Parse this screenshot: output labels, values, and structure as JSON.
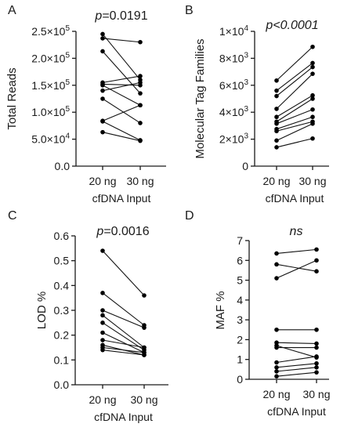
{
  "chart_data": [
    {
      "type": "scatter",
      "panel_label": "A",
      "annotation": "p=0.0191",
      "annotation_prefix": "p",
      "annotation_suffix": "=0.0191",
      "ylabel": "Total Reads",
      "xlabel": "cfDNA Input",
      "categories": [
        "20 ng",
        "30 ng"
      ],
      "ylim": [
        0,
        250000
      ],
      "yticks": [
        0,
        50000,
        100000,
        150000,
        200000,
        250000
      ],
      "ytick_labels": [
        {
          "base": "0.0",
          "exp": ""
        },
        {
          "base": "5.0×10",
          "exp": "4"
        },
        {
          "base": "1.0×10",
          "exp": "5"
        },
        {
          "base": "1.5×10",
          "exp": "5"
        },
        {
          "base": "2.0×10",
          "exp": "5"
        },
        {
          "base": "2.5×10",
          "exp": "5"
        }
      ],
      "pairs": [
        [
          245000,
          160000
        ],
        [
          237000,
          230000
        ],
        [
          213000,
          135000
        ],
        [
          155000,
          167000
        ],
        [
          152000,
          150000
        ],
        [
          150000,
          113000
        ],
        [
          140000,
          155000
        ],
        [
          125000,
          80000
        ],
        [
          84000,
          113000
        ],
        [
          83000,
          48000
        ],
        [
          63000,
          47000
        ]
      ]
    },
    {
      "type": "scatter",
      "panel_label": "B",
      "annotation": "p<0.0001",
      "annotation_prefix": "p<0.0001",
      "annotation_suffix": "",
      "ylabel": "Molecular Tag Families",
      "xlabel": "cfDNA Input",
      "categories": [
        "20 ng",
        "30 ng"
      ],
      "ylim": [
        0,
        10000
      ],
      "yticks": [
        0,
        2000,
        4000,
        6000,
        8000,
        10000
      ],
      "ytick_labels": [
        {
          "base": "0",
          "exp": ""
        },
        {
          "base": "2×10",
          "exp": "3"
        },
        {
          "base": "4×10",
          "exp": "3"
        },
        {
          "base": "6×10",
          "exp": "3"
        },
        {
          "base": "8×10",
          "exp": "3"
        },
        {
          "base": "1×10",
          "exp": "4"
        }
      ],
      "pairs": [
        [
          6350,
          8850
        ],
        [
          5600,
          7650
        ],
        [
          5200,
          7350
        ],
        [
          4250,
          6850
        ],
        [
          3650,
          5250
        ],
        [
          3300,
          5000
        ],
        [
          3150,
          4200
        ],
        [
          2750,
          3650
        ],
        [
          2600,
          3300
        ],
        [
          1900,
          3150
        ],
        [
          1400,
          2050
        ]
      ]
    },
    {
      "type": "scatter",
      "panel_label": "C",
      "annotation": "p=0.0016",
      "annotation_prefix": "p",
      "annotation_suffix": "=0.0016",
      "ylabel": "LOD %",
      "xlabel": "cfDNA Input",
      "categories": [
        "20 ng",
        "30 ng"
      ],
      "ylim": [
        0,
        0.6
      ],
      "yticks": [
        0,
        0.1,
        0.2,
        0.3,
        0.4,
        0.5,
        0.6
      ],
      "ytick_labels": [
        {
          "base": "0.0",
          "exp": ""
        },
        {
          "base": "0.1",
          "exp": ""
        },
        {
          "base": "0.2",
          "exp": ""
        },
        {
          "base": "0.3",
          "exp": ""
        },
        {
          "base": "0.4",
          "exp": ""
        },
        {
          "base": "0.5",
          "exp": ""
        },
        {
          "base": "0.6",
          "exp": ""
        }
      ],
      "pairs": [
        [
          0.54,
          0.36
        ],
        [
          0.37,
          0.24
        ],
        [
          0.3,
          0.23
        ],
        [
          0.28,
          0.15
        ],
        [
          0.25,
          0.14
        ],
        [
          0.21,
          0.13
        ],
        [
          0.18,
          0.15
        ],
        [
          0.16,
          0.12
        ],
        [
          0.15,
          0.13
        ],
        [
          0.14,
          0.12
        ]
      ]
    },
    {
      "type": "scatter",
      "panel_label": "D",
      "annotation": "ns",
      "annotation_prefix": "ns",
      "annotation_suffix": "",
      "ylabel": "MAF %",
      "xlabel": "cfDNA Input",
      "categories": [
        "20 ng",
        "30 ng"
      ],
      "ylim": [
        0,
        7
      ],
      "yticks": [
        0,
        1,
        2,
        3,
        4,
        5,
        6,
        7
      ],
      "ytick_labels": [
        {
          "base": "0",
          "exp": ""
        },
        {
          "base": "1",
          "exp": ""
        },
        {
          "base": "2",
          "exp": ""
        },
        {
          "base": "3",
          "exp": ""
        },
        {
          "base": "4",
          "exp": ""
        },
        {
          "base": "5",
          "exp": ""
        },
        {
          "base": "6",
          "exp": ""
        },
        {
          "base": "7",
          "exp": ""
        }
      ],
      "pairs": [
        [
          6.35,
          6.55
        ],
        [
          5.8,
          5.45
        ],
        [
          5.1,
          6.0
        ],
        [
          2.5,
          2.5
        ],
        [
          1.85,
          1.8
        ],
        [
          1.7,
          1.1
        ],
        [
          1.6,
          1.6
        ],
        [
          0.85,
          1.15
        ],
        [
          0.6,
          0.8
        ],
        [
          0.4,
          0.6
        ],
        [
          0.15,
          0.35
        ]
      ]
    }
  ]
}
